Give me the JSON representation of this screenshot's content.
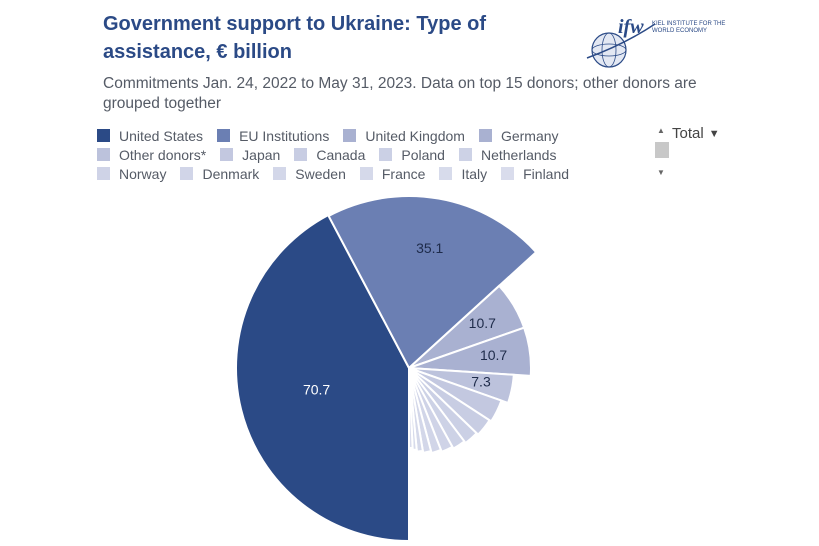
{
  "header": {
    "title": "Government support to Ukraine: Type of assistance, € billion",
    "subtitle": "Commitments Jan. 24, 2022 to May 31, 2023. Data on top 15 donors; other donors are grouped together",
    "logo_text": "ifw",
    "logo_sub": "KIEL INSTITUTE FOR THE WORLD ECONOMY"
  },
  "controls": {
    "dropdown_label": "Total",
    "dropdown_icon": "chevron-down-icon"
  },
  "chart_data": {
    "type": "pie",
    "title": "Government support to Ukraine: Type of assistance, € billion",
    "subtitle": "Commitments Jan. 24, 2022 to May 31, 2023. Data on top 15 donors; other donors are grouped together",
    "legend_placement": "top",
    "slices": [
      {
        "label": "United States",
        "value": 70.7,
        "color": "#2b4a86",
        "data_label": "70.7",
        "label_color": "#ffffff"
      },
      {
        "label": "EU Institutions",
        "value": 35.1,
        "color": "#6b7fb3",
        "data_label": "35.1",
        "label_color": "#1e2b4a"
      },
      {
        "label": "United Kingdom",
        "value": 10.7,
        "color": "#a9b1d1",
        "data_label": "10.7",
        "label_color": "#1e2b4a"
      },
      {
        "label": "Germany",
        "value": 10.7,
        "color": "#a9b1d1",
        "data_label": "10.7",
        "label_color": "#1e2b4a"
      },
      {
        "label": "Other donors*",
        "value": 7.3,
        "color": "#bcc2dc",
        "data_label": "7.3",
        "label_color": "#1e2b4a"
      },
      {
        "label": "Japan",
        "value": 6.3,
        "color": "#c3c8e0",
        "data_label": "",
        "label_color": "#1e2b4a"
      },
      {
        "label": "Canada",
        "value": 5.1,
        "color": "#c8cde3",
        "data_label": "",
        "label_color": "#1e2b4a"
      },
      {
        "label": "Poland",
        "value": 4.2,
        "color": "#cbd0e5",
        "data_label": "",
        "label_color": "#1e2b4a"
      },
      {
        "label": "Netherlands",
        "value": 3.8,
        "color": "#cdd2e6",
        "data_label": "",
        "label_color": "#1e2b4a"
      },
      {
        "label": "Norway",
        "value": 3.5,
        "color": "#cfd3e7",
        "data_label": "",
        "label_color": "#1e2b4a"
      },
      {
        "label": "Denmark",
        "value": 3.0,
        "color": "#d1d5e8",
        "data_label": "",
        "label_color": "#1e2b4a"
      },
      {
        "label": "Sweden",
        "value": 2.5,
        "color": "#d3d7e9",
        "data_label": "",
        "label_color": "#1e2b4a"
      },
      {
        "label": "France",
        "value": 1.9,
        "color": "#d5d9ea",
        "data_label": "",
        "label_color": "#1e2b4a"
      },
      {
        "label": "Italy",
        "value": 1.3,
        "color": "#d7dbeb",
        "data_label": "",
        "label_color": "#1e2b4a"
      },
      {
        "label": "Finland",
        "value": 1.2,
        "color": "#d9dcec",
        "data_label": "",
        "label_color": "#1e2b4a"
      }
    ]
  }
}
